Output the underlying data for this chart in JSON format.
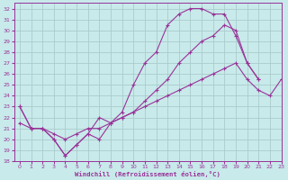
{
  "xlabel": "Windchill (Refroidissement éolien,°C)",
  "background_color": "#c8eaea",
  "grid_color": "#aacccc",
  "line_color": "#993399",
  "xlim": [
    -0.5,
    23
  ],
  "ylim": [
    18,
    32.5
  ],
  "xticks": [
    0,
    1,
    2,
    3,
    4,
    5,
    6,
    7,
    8,
    9,
    10,
    11,
    12,
    13,
    14,
    15,
    16,
    17,
    18,
    19,
    20,
    21,
    22,
    23
  ],
  "yticks": [
    18,
    19,
    20,
    21,
    22,
    23,
    24,
    25,
    26,
    27,
    28,
    29,
    30,
    31,
    32
  ],
  "line1_x": [
    0,
    1,
    2,
    3,
    4,
    5,
    6,
    7,
    8,
    9,
    10,
    11,
    12,
    13,
    14,
    15,
    16,
    17,
    18,
    19,
    20,
    21
  ],
  "line1_y": [
    23,
    21,
    21,
    20,
    18.5,
    19.5,
    20.5,
    22,
    21.5,
    22.5,
    25,
    27,
    28,
    30.5,
    31.5,
    32,
    32,
    31.5,
    31.5,
    29.5,
    27,
    25.5
  ],
  "line2_x": [
    0,
    1,
    2,
    3,
    4,
    5,
    6,
    7,
    8,
    9,
    10,
    11,
    12,
    13,
    14,
    15,
    16,
    17,
    18,
    19,
    20,
    21
  ],
  "line2_y": [
    23,
    21,
    21,
    20,
    18.5,
    19.5,
    20.5,
    20,
    21.5,
    22,
    22.5,
    23.5,
    24.5,
    25.5,
    27,
    28,
    29,
    29.5,
    30.5,
    30,
    27,
    25.5
  ],
  "line3_x": [
    0,
    1,
    2,
    3,
    4,
    5,
    6,
    7,
    8,
    9,
    10,
    11,
    12,
    13,
    14,
    15,
    16,
    17,
    18,
    19,
    20,
    21,
    22,
    23
  ],
  "line3_y": [
    21.5,
    21,
    21,
    20.5,
    20,
    20.5,
    21,
    21,
    21.5,
    22,
    22.5,
    23,
    23.5,
    24,
    24.5,
    25,
    25.5,
    26,
    26.5,
    27,
    25.5,
    24.5,
    24,
    25.5
  ],
  "marker": "+"
}
